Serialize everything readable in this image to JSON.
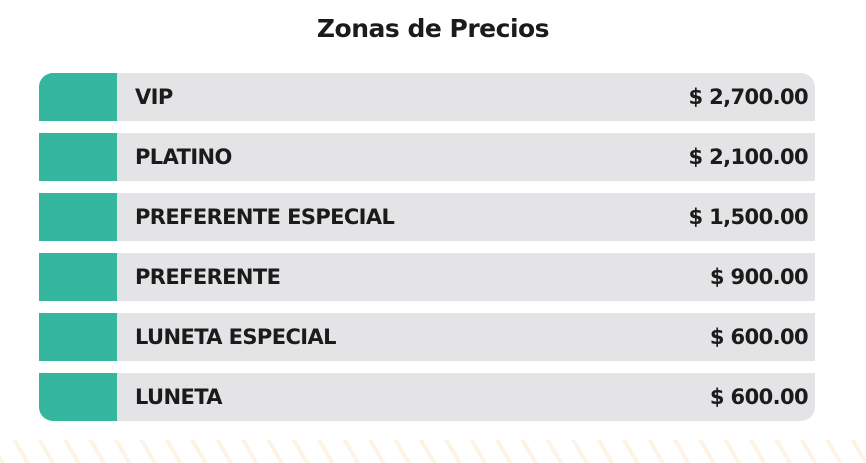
{
  "header": {
    "title": "Zonas de Precios"
  },
  "table": {
    "rows": [
      [
        "VIP",
        "$ 2,700.00"
      ],
      [
        "PLATINO",
        "$ 2,100.00"
      ],
      [
        "PREFERENTE ESPECIAL",
        "$ 1,500.00"
      ],
      [
        "PREFERENTE",
        "$ 900.00"
      ],
      [
        "LUNETA ESPECIAL",
        "$ 600.00"
      ],
      [
        "LUNETA",
        "$ 600.00"
      ]
    ]
  }
}
